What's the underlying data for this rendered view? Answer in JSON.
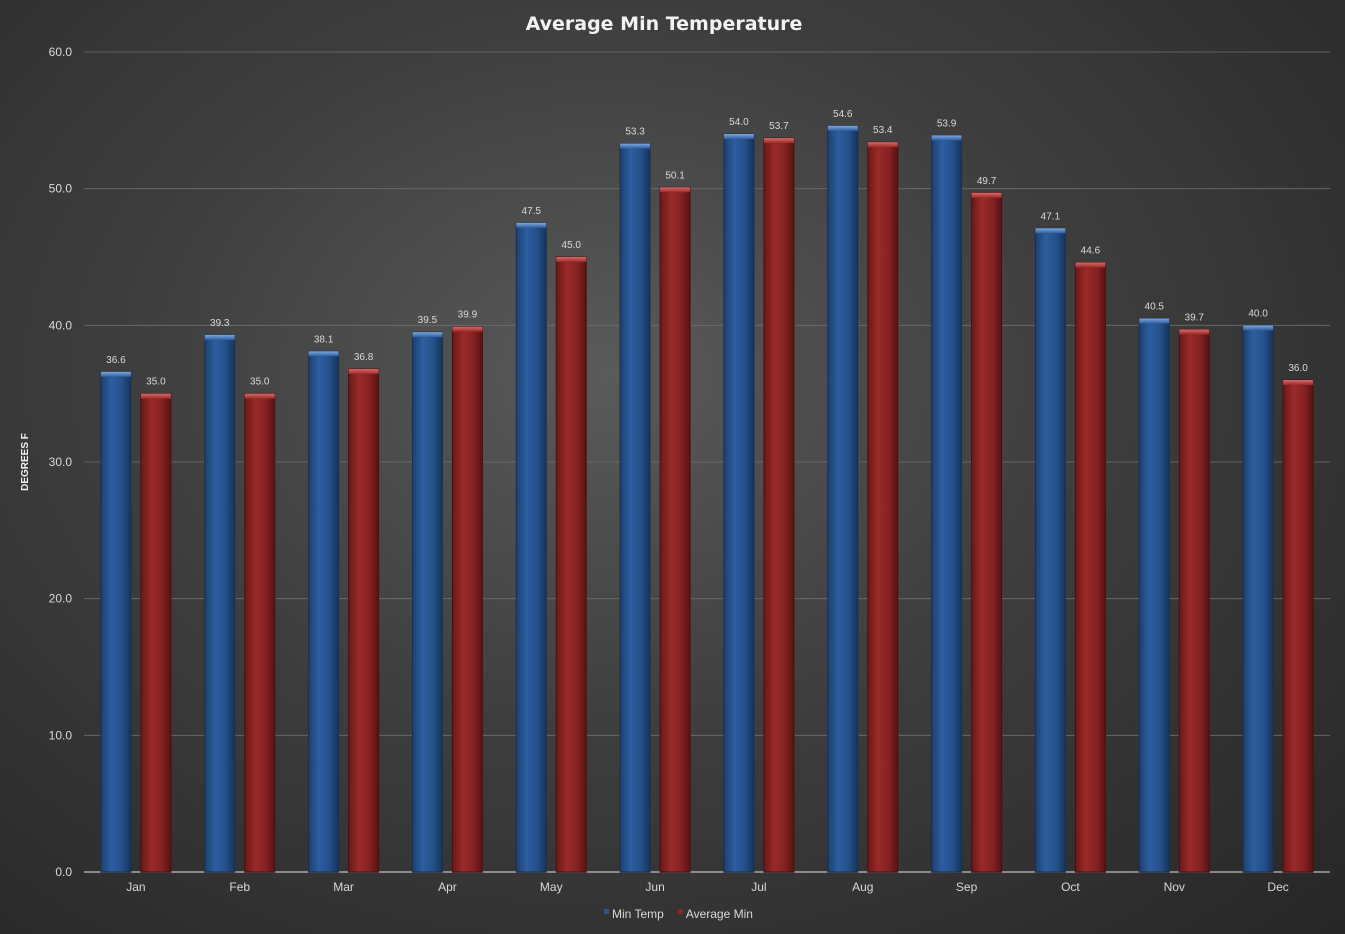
{
  "chart_data": {
    "type": "bar",
    "title": "Average Min Temperature",
    "xlabel": "",
    "ylabel": "DEGREES F",
    "ylim": [
      0,
      60
    ],
    "yticks": [
      "0.0",
      "10.0",
      "20.0",
      "30.0",
      "40.0",
      "50.0",
      "60.0"
    ],
    "categories": [
      "Jan",
      "Feb",
      "Mar",
      "Apr",
      "May",
      "Jun",
      "Jul",
      "Aug",
      "Sep",
      "Oct",
      "Nov",
      "Dec"
    ],
    "series": [
      {
        "name": "Min Temp",
        "color": "#2a5592",
        "values": [
          36.6,
          39.3,
          38.1,
          39.5,
          47.5,
          53.3,
          54.0,
          54.6,
          53.9,
          47.1,
          40.5,
          40.0
        ],
        "labels": [
          "36.6",
          "39.3",
          "38.1",
          "39.5",
          "47.5",
          "53.3",
          "54.0",
          "54.6",
          "53.9",
          "47.1",
          "40.5",
          "40.0"
        ]
      },
      {
        "name": "Average Min",
        "color": "#8e2424",
        "values": [
          35.0,
          35.0,
          36.8,
          39.9,
          45.0,
          50.1,
          53.7,
          53.4,
          49.7,
          44.6,
          39.7,
          36.0
        ],
        "labels": [
          "35.0",
          "35.0",
          "36.8",
          "39.9",
          "45.0",
          "50.1",
          "53.7",
          "53.4",
          "49.7",
          "44.6",
          "39.7",
          "36.0"
        ]
      }
    ],
    "grid": true,
    "legend_position": "bottom"
  }
}
